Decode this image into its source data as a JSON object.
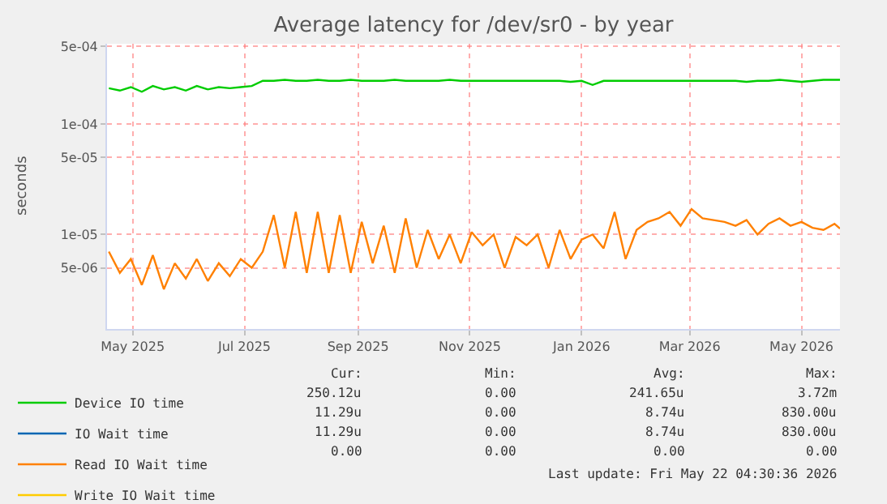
{
  "chart_data": {
    "type": "line",
    "title": "Average latency for /dev/sr0 - by year",
    "ylabel": "seconds",
    "log": true,
    "grid": true,
    "legend": "bottom",
    "marker": "none",
    "line_style": "solid",
    "x": [
      "2025-04-18",
      "2025-04-24",
      "2025-04-30",
      "2025-05-06",
      "2025-05-12",
      "2025-05-18",
      "2025-05-24",
      "2025-05-30",
      "2025-06-05",
      "2025-06-11",
      "2025-06-17",
      "2025-06-23",
      "2025-06-29",
      "2025-07-05",
      "2025-07-11",
      "2025-07-17",
      "2025-07-23",
      "2025-07-29",
      "2025-08-04",
      "2025-08-10",
      "2025-08-16",
      "2025-08-22",
      "2025-08-28",
      "2025-09-03",
      "2025-09-09",
      "2025-09-15",
      "2025-09-21",
      "2025-09-27",
      "2025-10-03",
      "2025-10-09",
      "2025-10-15",
      "2025-10-21",
      "2025-10-27",
      "2025-11-02",
      "2025-11-08",
      "2025-11-14",
      "2025-11-20",
      "2025-11-26",
      "2025-12-02",
      "2025-12-08",
      "2025-12-14",
      "2025-12-20",
      "2025-12-26",
      "2026-01-01",
      "2026-01-07",
      "2026-01-13",
      "2026-01-19",
      "2026-01-25",
      "2026-01-31",
      "2026-02-06",
      "2026-02-12",
      "2026-02-18",
      "2026-02-24",
      "2026-03-02",
      "2026-03-08",
      "2026-03-14",
      "2026-03-20",
      "2026-03-26",
      "2026-04-01",
      "2026-04-07",
      "2026-04-13",
      "2026-04-19",
      "2026-04-25",
      "2026-05-01",
      "2026-05-07",
      "2026-05-13",
      "2026-05-19",
      "2026-05-22"
    ],
    "xlim": [
      "2025-04-17",
      "2026-05-22"
    ],
    "xticks": [
      {
        "value": "2025-05-01",
        "label": "May 2025"
      },
      {
        "value": "2025-07-01",
        "label": "Jul 2025"
      },
      {
        "value": "2025-09-01",
        "label": "Sep 2025"
      },
      {
        "value": "2025-11-01",
        "label": "Nov 2025"
      },
      {
        "value": "2026-01-01",
        "label": "Jan 2026"
      },
      {
        "value": "2026-03-01",
        "label": "Mar 2026"
      },
      {
        "value": "2026-05-01",
        "label": "May 2026"
      }
    ],
    "ylim": [
      1.4e-06,
      0.00053
    ],
    "yticks": [
      {
        "value": 5e-06,
        "label": "5e-06"
      },
      {
        "value": 1e-05,
        "label": "1e-05"
      },
      {
        "value": 5e-05,
        "label": "5e-05"
      },
      {
        "value": 0.0001,
        "label": "1e-04"
      },
      {
        "value": 0.0005,
        "label": "5e-04"
      }
    ],
    "series": [
      {
        "name": "Device IO time",
        "color": "#00cc00",
        "values": [
          0.00021,
          0.0002,
          0.000215,
          0.000195,
          0.00022,
          0.000205,
          0.000215,
          0.0002,
          0.00022,
          0.000205,
          0.000215,
          0.00021,
          0.000215,
          0.00022,
          0.000245,
          0.000245,
          0.00025,
          0.000245,
          0.000245,
          0.00025,
          0.000245,
          0.000245,
          0.00025,
          0.000245,
          0.000245,
          0.000245,
          0.00025,
          0.000245,
          0.000245,
          0.000245,
          0.000245,
          0.00025,
          0.000245,
          0.000245,
          0.000245,
          0.000245,
          0.000245,
          0.000245,
          0.000245,
          0.000245,
          0.000245,
          0.000245,
          0.00024,
          0.000245,
          0.000225,
          0.000245,
          0.000245,
          0.000245,
          0.000245,
          0.000245,
          0.000245,
          0.000245,
          0.000245,
          0.000245,
          0.000245,
          0.000245,
          0.000245,
          0.000245,
          0.00024,
          0.000245,
          0.000245,
          0.00025,
          0.000245,
          0.00024,
          0.000245,
          0.00025,
          0.00025,
          0.00025
        ]
      },
      {
        "name": "IO Wait time",
        "color": "#0066b3",
        "values": [
          null,
          null,
          null,
          null,
          null,
          null,
          null,
          null,
          null,
          null,
          null,
          null,
          null,
          null,
          null,
          null,
          null,
          null,
          null,
          null,
          null,
          null,
          null,
          null,
          null,
          null,
          null,
          null,
          null,
          null,
          null,
          null,
          null,
          null,
          null,
          null,
          null,
          null,
          null,
          null,
          null,
          null,
          null,
          null,
          null,
          null,
          null,
          null,
          null,
          null,
          null,
          null,
          null,
          null,
          null,
          null,
          null,
          null,
          null,
          null,
          null,
          null,
          null,
          null,
          null,
          null,
          null,
          null
        ]
      },
      {
        "name": "Read IO Wait time",
        "color": "#ff8000",
        "values": [
          7e-06,
          4.5e-06,
          6e-06,
          3.5e-06,
          6.5e-06,
          3.2e-06,
          5.5e-06,
          4e-06,
          6e-06,
          3.8e-06,
          5.5e-06,
          4.2e-06,
          6e-06,
          5e-06,
          7e-06,
          1.5e-05,
          5e-06,
          1.6e-05,
          4.5e-06,
          1.6e-05,
          4.5e-06,
          1.5e-05,
          4.5e-06,
          1.3e-05,
          5.5e-06,
          1.2e-05,
          4.5e-06,
          1.4e-05,
          5e-06,
          1.1e-05,
          6e-06,
          1e-05,
          5.5e-06,
          1.05e-05,
          8e-06,
          1e-05,
          5e-06,
          9.5e-06,
          8e-06,
          1e-05,
          5e-06,
          1.1e-05,
          6e-06,
          9e-06,
          1e-05,
          7.5e-06,
          1.6e-05,
          6e-06,
          1.1e-05,
          1.3e-05,
          1.4e-05,
          1.6e-05,
          1.2e-05,
          1.7e-05,
          1.4e-05,
          1.35e-05,
          1.3e-05,
          1.2e-05,
          1.35e-05,
          1e-05,
          1.25e-05,
          1.4e-05,
          1.2e-05,
          1.3e-05,
          1.15e-05,
          1.1e-05,
          1.25e-05,
          1.13e-05
        ]
      },
      {
        "name": "Write IO Wait time",
        "color": "#ffcc00",
        "values": [
          null,
          null,
          null,
          null,
          null,
          null,
          null,
          null,
          null,
          null,
          null,
          null,
          null,
          null,
          null,
          null,
          null,
          null,
          null,
          null,
          null,
          null,
          null,
          null,
          null,
          null,
          null,
          null,
          null,
          null,
          null,
          null,
          null,
          null,
          null,
          null,
          null,
          null,
          null,
          null,
          null,
          null,
          null,
          null,
          null,
          null,
          null,
          null,
          null,
          null,
          null,
          null,
          null,
          null,
          null,
          null,
          null,
          null,
          null,
          null,
          null,
          null,
          null,
          null,
          null,
          null,
          null,
          null
        ]
      }
    ],
    "annotations": [
      "Cur:",
      "Min:",
      "Avg:",
      "Max:",
      "250.12u",
      "0.00",
      "241.65u",
      "3.72m",
      "11.29u",
      "0.00",
      "8.74u",
      "830.00u",
      "11.29u",
      "0.00",
      "8.74u",
      "830.00u",
      "0.00",
      "0.00",
      "0.00",
      "0.00",
      "Last update: Fri May 22 04:30:36 2026"
    ]
  }
}
